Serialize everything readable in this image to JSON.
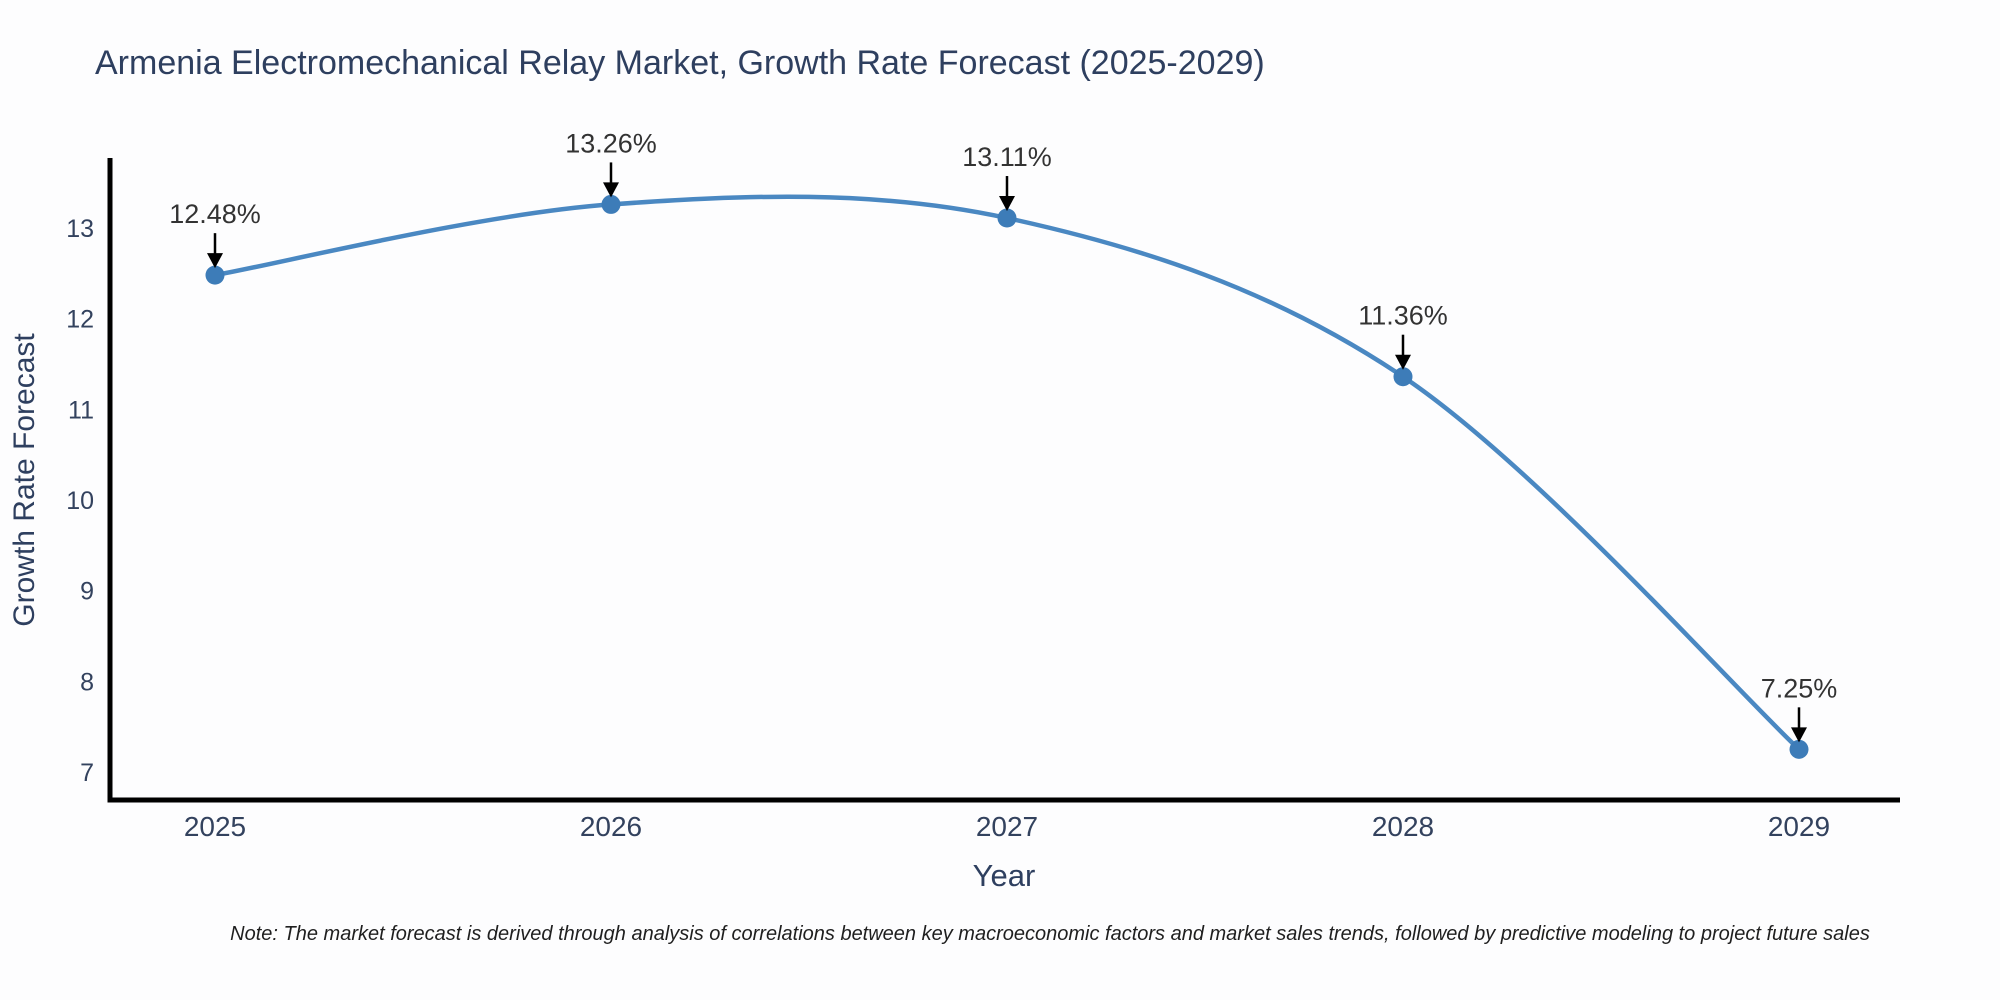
{
  "title": "Armenia Electromechanical Relay Market, Growth Rate Forecast (2025-2029)",
  "note": "Note: The market forecast is derived through analysis of correlations between key macroeconomic factors and market sales trends, followed by predictive modeling to project future sales",
  "colors": {
    "line": "#4a88c2",
    "marker": "#3d7cb8",
    "spine": "#000000",
    "annotation_arrow": "#000000",
    "title_text": "#2e3f5f",
    "tick_text": "#33425e",
    "background": "#fdfdfe"
  },
  "chart_data": {
    "type": "line",
    "line_shape": "spline",
    "markers": true,
    "grid": false,
    "legend": "none",
    "title": "Armenia Electromechanical Relay Market, Growth Rate Forecast (2025-2029)",
    "xlabel": "Year",
    "ylabel": "Growth Rate Forecast",
    "x": [
      2025,
      2026,
      2027,
      2028,
      2029
    ],
    "values": [
      12.48,
      13.26,
      13.11,
      11.36,
      7.25
    ],
    "point_labels": [
      "12.48%",
      "13.26%",
      "13.11%",
      "11.36%",
      "7.25%"
    ],
    "annotation_style": "label with downward arrow to each point",
    "yticks": [
      7,
      8,
      9,
      10,
      11,
      12,
      13
    ],
    "xticks": [
      "2025",
      "2026",
      "2027",
      "2028",
      "2029"
    ],
    "ylim": [
      6.7,
      13.75
    ],
    "xlim": [
      2024.73,
      2029.27
    ]
  }
}
